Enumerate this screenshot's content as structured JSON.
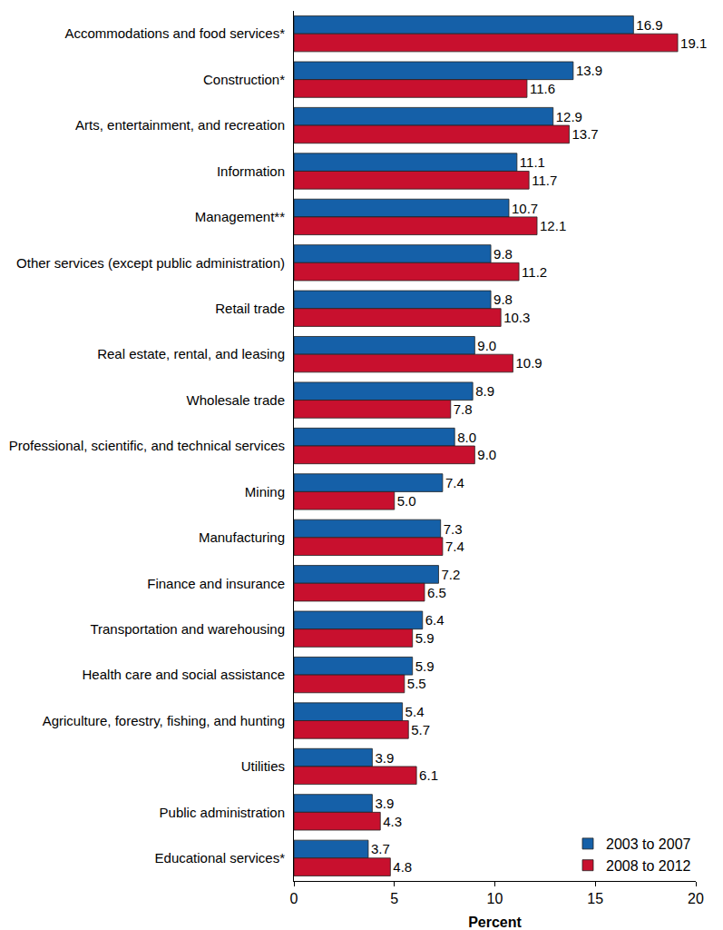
{
  "chart_data": {
    "type": "bar",
    "orientation": "horizontal",
    "data_labels": true,
    "grid": false,
    "legend": "bottom right",
    "x_label": "Percent",
    "xlim": [
      0,
      20
    ],
    "xticks": [
      0,
      5,
      10,
      15,
      20
    ],
    "categories": [
      "Accommodations and food services*",
      "Construction*",
      "Arts, entertainment, and recreation",
      "Information",
      "Management**",
      "Other services (except public administration)",
      "Retail trade",
      "Real estate, rental, and leasing",
      "Wholesale trade",
      "Professional, scientific, and technical services",
      "Mining",
      "Manufacturing",
      "Finance and insurance",
      "Transportation and warehousing",
      "Health care and social assistance",
      "Agriculture, forestry, fishing, and hunting",
      "Utilities",
      "Public administration",
      "Educational services*"
    ],
    "series": [
      {
        "name": "2003 to 2007",
        "color": "#1560a8",
        "values": [
          16.9,
          13.9,
          12.9,
          11.1,
          10.7,
          9.8,
          9.8,
          9.0,
          8.9,
          8.0,
          7.4,
          7.3,
          7.2,
          6.4,
          5.9,
          5.4,
          3.9,
          3.9,
          3.7
        ],
        "value_labels": [
          "16.9",
          "13.9",
          "12.9",
          "11.1",
          "10.7",
          "9.8",
          "9.8",
          "9.0",
          "8.9",
          "8.0",
          "7.4",
          "7.3",
          "7.2",
          "6.4",
          "5.9",
          "5.4",
          "3.9",
          "3.9",
          "3.7"
        ]
      },
      {
        "name": "2008 to 2012",
        "color": "#c8102e",
        "values": [
          19.1,
          11.6,
          13.7,
          11.7,
          12.1,
          11.2,
          10.3,
          10.9,
          7.8,
          9.0,
          5.0,
          7.4,
          6.5,
          5.9,
          5.5,
          5.7,
          6.1,
          4.3,
          4.8
        ],
        "value_labels": [
          "19.1",
          "11.6",
          "13.7",
          "11.7",
          "12.1",
          "11.2",
          "10.3",
          "10.9",
          "7.8",
          "9.0",
          "5.0",
          "7.4",
          "6.5",
          "5.9",
          "5.5",
          "5.7",
          "6.1",
          "4.3",
          "4.8"
        ]
      }
    ]
  }
}
